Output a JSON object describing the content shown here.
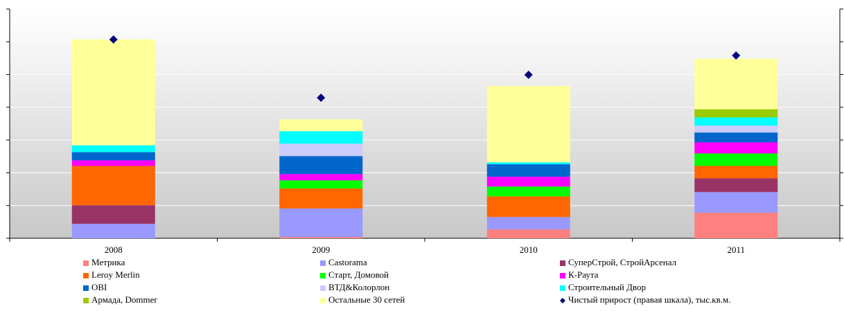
{
  "chart_data": {
    "type": "bar",
    "categories": [
      "2008",
      "2009",
      "2010",
      "2011"
    ],
    "ylim": [
      0,
      7
    ],
    "yticks": [
      0,
      1,
      2,
      3,
      4,
      5,
      6,
      7
    ],
    "y2lim": [
      0,
      7
    ],
    "y2ticks": [
      0,
      1,
      2,
      3,
      4,
      5,
      6,
      7
    ],
    "grid": true,
    "stacked": true,
    "series": [
      {
        "name": "Метрика",
        "color": "#ff8080",
        "values": [
          0,
          0.04,
          0.27,
          0.78
        ]
      },
      {
        "name": "Castorama",
        "color": "#9999ff",
        "values": [
          0.44,
          0.87,
          0.38,
          0.63
        ]
      },
      {
        "name": "СуперСтрой, СтройАрсенал",
        "color": "#993366",
        "values": [
          0.57,
          0,
          0,
          0.42
        ]
      },
      {
        "name": "Leroy Merlin",
        "color": "#ff6600",
        "values": [
          1.2,
          0.61,
          0.63,
          0.38
        ]
      },
      {
        "name": "Старт, Домовой",
        "color": "#00ff00",
        "values": [
          0,
          0.25,
          0.3,
          0.38
        ]
      },
      {
        "name": "К-Раута",
        "color": "#ff00ff",
        "values": [
          0.17,
          0.19,
          0.3,
          0.34
        ]
      },
      {
        "name": "OBI",
        "color": "#0066cc",
        "values": [
          0.25,
          0.55,
          0.38,
          0.3
        ]
      },
      {
        "name": "ВТД&Колорлон",
        "color": "#ccccff",
        "values": [
          0,
          0.38,
          0,
          0.21
        ]
      },
      {
        "name": "Строительный Двор",
        "color": "#00ffff",
        "values": [
          0.21,
          0.38,
          0.06,
          0.25
        ]
      },
      {
        "name": "Армада, Dommer",
        "color": "#99cc00",
        "values": [
          0,
          0,
          0,
          0.25
        ]
      },
      {
        "name": "Остальные 30 сетей",
        "color": "#ffff99",
        "values": [
          3.23,
          0.36,
          2.33,
          1.54
        ]
      },
      {
        "name": "Чистый прирост (правая шкала), тыс.кв.м.",
        "color": "#000080",
        "type": "scatter",
        "axis": "y2",
        "values": [
          6.07,
          4.29,
          4.99,
          5.58
        ]
      }
    ]
  }
}
